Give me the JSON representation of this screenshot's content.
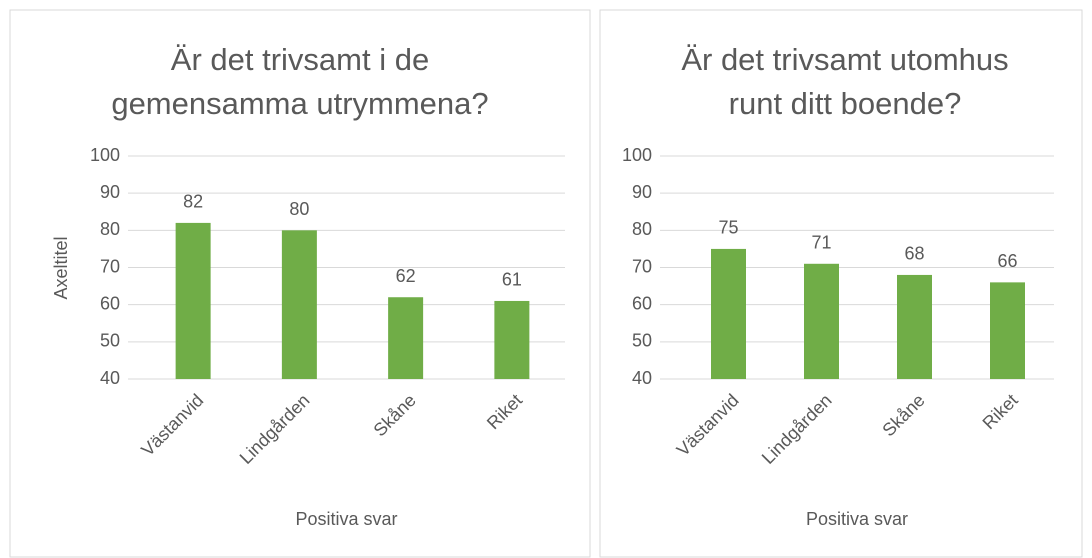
{
  "chart_data": [
    {
      "type": "bar",
      "title": "Är det trivsamt i de gemensamma utrymmena?",
      "y_axis_label": "Axeltitel",
      "x_axis_label": "Positiva svar",
      "categories": [
        "Västanvid",
        "Lindgården",
        "Skåne",
        "Riket"
      ],
      "values": [
        82,
        80,
        62,
        61
      ],
      "color": "#70ad47",
      "ylim": [
        40,
        100
      ],
      "yticks": [
        40,
        50,
        60,
        70,
        80,
        90,
        100
      ],
      "grid": true
    },
    {
      "type": "bar",
      "title": "Är det trivsamt utomhus runt ditt boende?",
      "x_axis_label": "Positiva svar",
      "categories": [
        "Västanvid",
        "Lindgården",
        "Skåne",
        "Riket"
      ],
      "values": [
        75,
        71,
        68,
        66
      ],
      "color": "#70ad47",
      "ylim": [
        40,
        100
      ],
      "yticks": [
        40,
        50,
        60,
        70,
        80,
        90,
        100
      ],
      "grid": true
    }
  ]
}
